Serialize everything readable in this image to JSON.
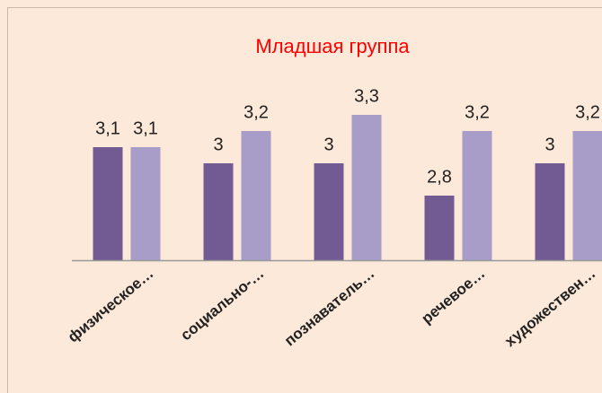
{
  "chart_data": {
    "type": "bar",
    "title": "Младшая группа",
    "categories": [
      "физическое…",
      "социально-…",
      "познаватель…",
      "речевое…",
      "художествен…"
    ],
    "series": [
      {
        "color": "#725a92",
        "values": [
          3.1,
          3.0,
          3.0,
          2.8,
          3.0
        ],
        "value_labels": [
          "3,1",
          "3",
          "3",
          "2,8",
          "3"
        ]
      },
      {
        "color": "#a89cc8",
        "values": [
          3.1,
          3.2,
          3.3,
          3.2,
          3.2
        ],
        "value_labels": [
          "3,1",
          "3,2",
          "3,3",
          "3,2",
          "3,2"
        ]
      }
    ],
    "ylim": [
      2.4,
      3.4
    ],
    "title_color": "#ff0000"
  }
}
